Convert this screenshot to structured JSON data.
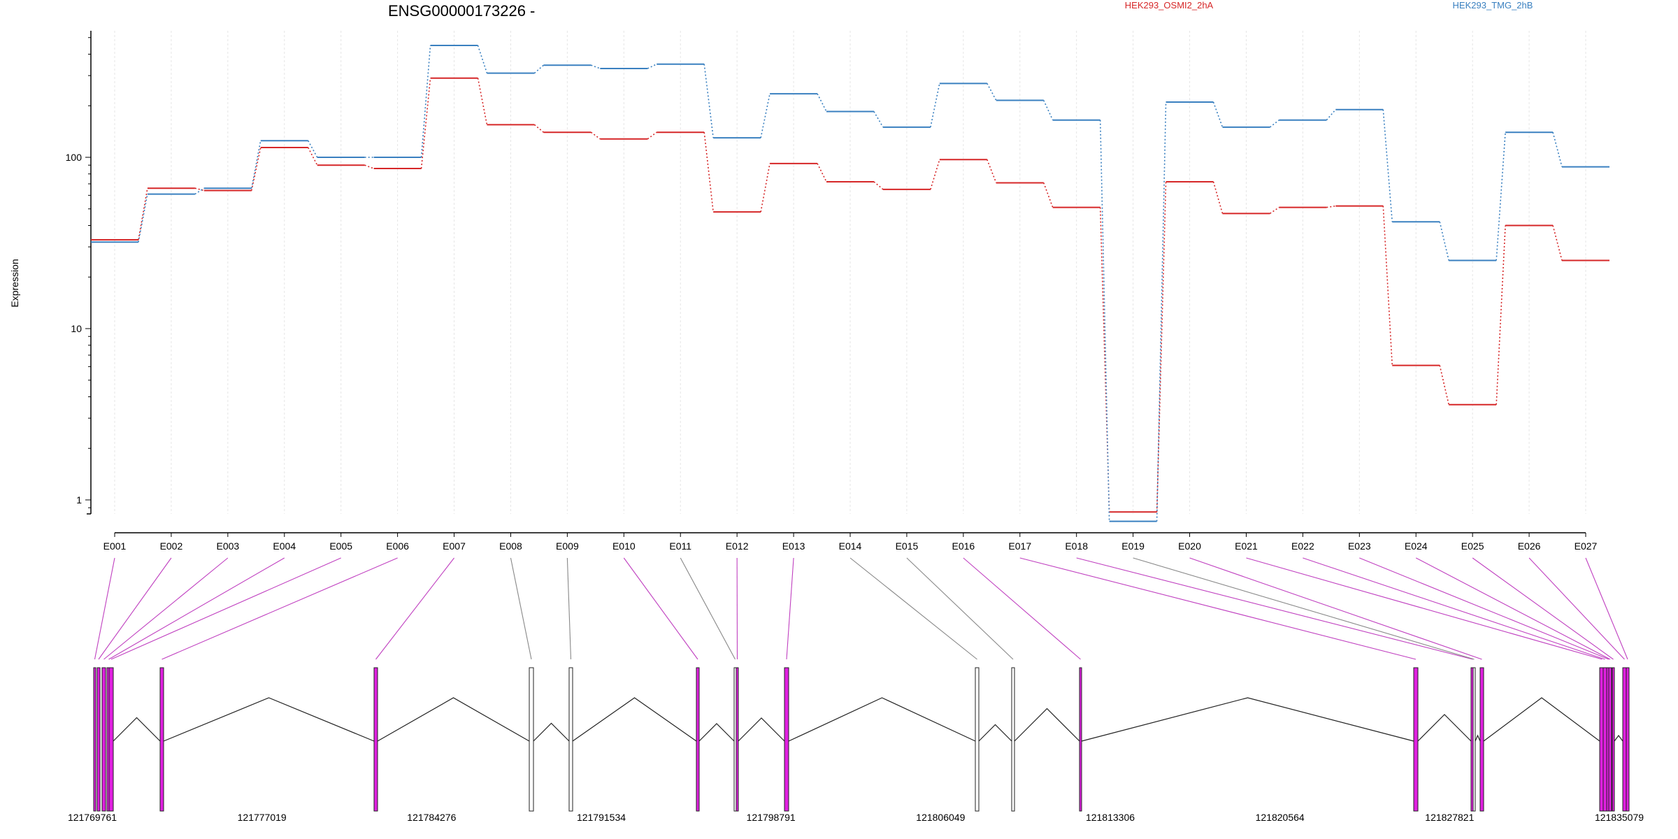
{
  "chart_data": {
    "type": "line",
    "title": "ENSG00000173226 -",
    "ylabel": "Expression",
    "xlabel": "",
    "y_scale": "log",
    "ylim": [
      0.4,
      600
    ],
    "y_ticks": [
      1,
      10,
      100
    ],
    "grid": "vertical lines at exons",
    "categories": [
      "E001",
      "E002",
      "E003",
      "E004",
      "E005",
      "E006",
      "E007",
      "E008",
      "E009",
      "E010",
      "E011",
      "E012",
      "E013",
      "E014",
      "E015",
      "E016",
      "E017",
      "E018",
      "E019",
      "E020",
      "E021",
      "E022",
      "E023",
      "E024",
      "E025",
      "E026",
      "E027"
    ],
    "series": [
      {
        "name": "HEK293_OSMI2_2hA",
        "color": "#d62728",
        "values": [
          33,
          66,
          64,
          114,
          90,
          86,
          290,
          155,
          140,
          128,
          140,
          48,
          92,
          72,
          65,
          97,
          71,
          51,
          0.85,
          72,
          47,
          51,
          52,
          6.1,
          3.6,
          40,
          25
        ]
      },
      {
        "name": "HEK293_TMG_2hB",
        "color": "#3a80c0",
        "values": [
          32,
          61,
          66,
          125,
          100,
          100,
          450,
          310,
          345,
          330,
          350,
          130,
          235,
          185,
          150,
          270,
          215,
          165,
          0.75,
          210,
          150,
          165,
          190,
          42,
          25,
          140,
          88
        ]
      }
    ],
    "gene_model": {
      "coordinate_ticks": [
        "121769761",
        "121777019",
        "121784276",
        "121791534",
        "121798791",
        "121806049",
        "121813306",
        "121820564",
        "121827821",
        "121835079"
      ],
      "exon_colors": {
        "highlight": "#e020e0",
        "normal": "#ffffff"
      },
      "exon_highlighted": [
        true,
        true,
        true,
        true,
        true,
        true,
        true,
        false,
        false,
        true,
        false,
        true,
        true,
        false,
        false,
        true,
        true,
        true,
        false,
        true,
        true,
        true,
        true,
        true,
        true,
        true,
        true
      ]
    }
  }
}
